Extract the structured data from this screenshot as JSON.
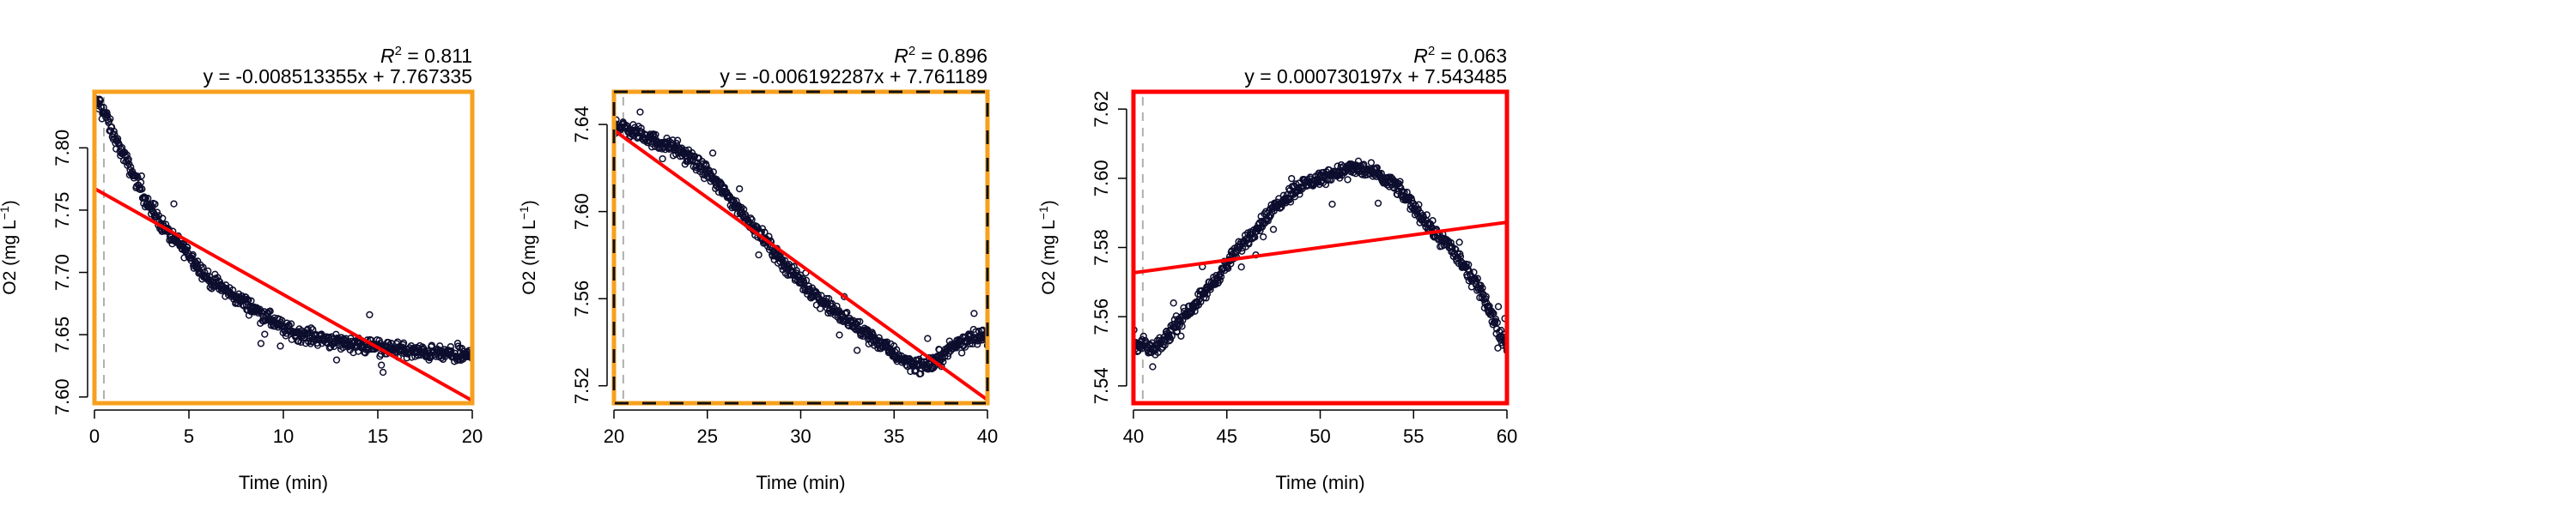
{
  "chart_data": [
    {
      "type": "scatter",
      "title_r2": "0.811",
      "title_eq": "y = -0.008513355x + 7.767335",
      "xlabel": "Time (min)",
      "ylabel": "O2 (mg L",
      "ylabel_sup": "−1",
      "xlim": [
        0,
        20
      ],
      "ylim": [
        7.595,
        7.845
      ],
      "xticks": [
        0,
        5,
        10,
        15,
        20
      ],
      "yticks": [
        7.6,
        7.65,
        7.7,
        7.75,
        7.8
      ],
      "ytick_labels": [
        "7.60",
        "7.65",
        "7.70",
        "7.75",
        "7.80"
      ],
      "vline_x": 0.5,
      "border_color": "#F7A01E",
      "border_style": "solid",
      "fit": {
        "slope": -0.008513355,
        "intercept": 7.767335,
        "color": "#FF0000"
      },
      "series": [
        {
          "x": [
            0.3,
            0.5,
            1,
            1.5,
            2,
            2.5,
            3,
            3.5,
            4,
            5,
            6,
            7,
            8,
            9,
            10,
            11,
            12,
            13,
            14,
            15,
            16,
            17,
            18,
            19,
            20
          ],
          "values": [
            7.835,
            7.83,
            7.81,
            7.795,
            7.78,
            7.765,
            7.75,
            7.74,
            7.73,
            7.715,
            7.695,
            7.685,
            7.675,
            7.665,
            7.655,
            7.65,
            7.647,
            7.644,
            7.642,
            7.64,
            7.638,
            7.636,
            7.635,
            7.634,
            7.633
          ]
        }
      ]
    },
    {
      "type": "scatter",
      "title_r2": "0.896",
      "title_eq": "y = -0.006192287x + 7.761189",
      "xlabel": "Time (min)",
      "ylabel": "O2 (mg L",
      "ylabel_sup": "−1",
      "xlim": [
        20,
        40
      ],
      "ylim": [
        7.512,
        7.655
      ],
      "xticks": [
        20,
        25,
        30,
        35,
        40
      ],
      "yticks": [
        7.52,
        7.56,
        7.6,
        7.64
      ],
      "ytick_labels": [
        "7.52",
        "7.56",
        "7.60",
        "7.64"
      ],
      "vline_x": 20.5,
      "border_color": "#F7A01E",
      "border_style": "dashed",
      "fit": {
        "slope": -0.006192287,
        "intercept": 7.761189,
        "color": "#FF0000"
      },
      "series": [
        {
          "x": [
            20,
            21,
            22,
            23,
            24,
            25,
            26,
            27,
            28,
            29,
            30,
            31,
            32,
            33,
            34,
            35,
            35.5,
            36,
            36.5,
            37,
            37.5,
            38,
            38.5,
            39,
            39.5,
            40
          ],
          "values": [
            7.64,
            7.637,
            7.633,
            7.63,
            7.625,
            7.618,
            7.608,
            7.598,
            7.588,
            7.577,
            7.568,
            7.56,
            7.553,
            7.547,
            7.541,
            7.535,
            7.532,
            7.53,
            7.529,
            7.53,
            7.533,
            7.537,
            7.54,
            7.542,
            7.543,
            7.542
          ]
        }
      ]
    },
    {
      "type": "scatter",
      "title_r2": "0.063",
      "title_eq": "y = 0.000730197x + 7.543485",
      "xlabel": "Time (min)",
      "ylabel": "O2 (mg L",
      "ylabel_sup": "−1",
      "xlim": [
        40,
        60
      ],
      "ylim": [
        7.535,
        7.625
      ],
      "xticks": [
        40,
        45,
        50,
        55,
        60
      ],
      "yticks": [
        7.54,
        7.56,
        7.58,
        7.6,
        7.62
      ],
      "ytick_labels": [
        "7.54",
        "7.56",
        "7.58",
        "7.60",
        "7.62"
      ],
      "vline_x": 40.5,
      "border_color": "#FF0000",
      "border_style": "solid",
      "fit": {
        "slope": 0.000730197,
        "intercept": 7.543485,
        "color": "#FF0000"
      },
      "series": [
        {
          "x": [
            40.5,
            41,
            41.5,
            42,
            43,
            44,
            45,
            46,
            47,
            48,
            49,
            50,
            51,
            52,
            53,
            54,
            55,
            56,
            57,
            58,
            58.5,
            59,
            59.5,
            60
          ],
          "values": [
            7.552,
            7.55,
            7.552,
            7.556,
            7.562,
            7.568,
            7.575,
            7.582,
            7.588,
            7.594,
            7.598,
            7.6,
            7.602,
            7.603,
            7.601,
            7.598,
            7.592,
            7.585,
            7.58,
            7.572,
            7.568,
            7.563,
            7.556,
            7.552
          ]
        }
      ]
    }
  ]
}
